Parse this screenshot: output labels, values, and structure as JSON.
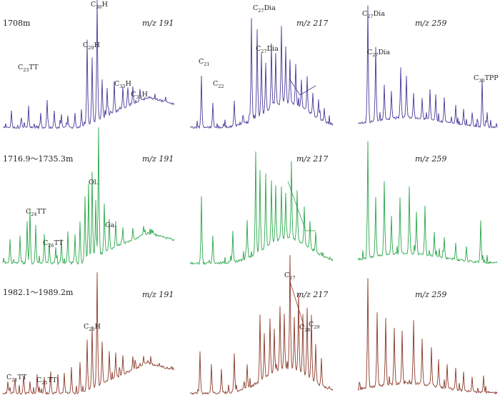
{
  "colors": {
    "row1": "#4a3a9a",
    "row2": "#2aa84a",
    "row3": "#8b3a2a"
  },
  "rows": [
    {
      "depth": "1708m",
      "color": "#4a3a9a",
      "mz": [
        "m/z 191",
        "m/z 217",
        "m/z 259"
      ]
    },
    {
      "depth": "1716.9～1735.3m",
      "color": "#2aa84a",
      "mz": [
        "m/z 191",
        "m/z 217",
        "m/z 259"
      ]
    },
    {
      "depth": "1982.1～1989.2m",
      "color": "#8b3a2a",
      "mz": [
        "m/z 191",
        "m/z 217",
        "m/z 259"
      ]
    }
  ],
  "annotations": [
    {
      "row": 0,
      "col": 0,
      "base": "C",
      "sub": "23",
      "suffix": "TT"
    },
    {
      "row": 0,
      "col": 0,
      "base": "C",
      "sub": "29",
      "suffix": "H"
    },
    {
      "row": 0,
      "col": 0,
      "base": "C",
      "sub": "30",
      "suffix": "H"
    },
    {
      "row": 0,
      "col": 0,
      "base": "C",
      "sub": "33",
      "suffix": "H"
    },
    {
      "row": 0,
      "col": 0,
      "base": "C",
      "sub": "35",
      "suffix": "H"
    },
    {
      "row": 0,
      "col": 1,
      "base": "C",
      "sub": "21",
      "suffix": ""
    },
    {
      "row": 0,
      "col": 1,
      "base": "C",
      "sub": "22",
      "suffix": ""
    },
    {
      "row": 0,
      "col": 1,
      "base": "C",
      "sub": "27",
      "suffix": "Dia"
    },
    {
      "row": 0,
      "col": 1,
      "base": "C",
      "sub": "27",
      "suffix": "Dia"
    },
    {
      "row": 0,
      "col": 2,
      "base": "C",
      "sub": "27",
      "suffix": "Dia"
    },
    {
      "row": 0,
      "col": 2,
      "base": "C",
      "sub": "27",
      "suffix": "Dia"
    },
    {
      "row": 0,
      "col": 2,
      "base": "C",
      "sub": "30",
      "suffix": "TPP"
    },
    {
      "row": 1,
      "col": 0,
      "base": "C",
      "sub": "24",
      "suffix": "TT"
    },
    {
      "row": 1,
      "col": 0,
      "base": "C",
      "sub": "26",
      "suffix": "TT"
    },
    {
      "row": 1,
      "col": 0,
      "base": "Ol.",
      "sub": "",
      "suffix": ""
    },
    {
      "row": 1,
      "col": 0,
      "base": "Ga.",
      "sub": "",
      "suffix": ""
    },
    {
      "row": 2,
      "col": 0,
      "base": "C",
      "sub": "29",
      "suffix": "H"
    },
    {
      "row": 2,
      "col": 0,
      "base": "C",
      "sub": "21",
      "suffix": "TT"
    },
    {
      "row": 2,
      "col": 0,
      "base": "C",
      "sub": "25",
      "suffix": "TT"
    },
    {
      "row": 2,
      "col": 1,
      "base": "C",
      "sub": "27",
      "suffix": ""
    },
    {
      "row": 2,
      "col": 1,
      "base": "C",
      "sub": "28",
      "suffix": ""
    },
    {
      "row": 2,
      "col": 1,
      "base": "C",
      "sub": "29",
      "suffix": ""
    }
  ]
}
